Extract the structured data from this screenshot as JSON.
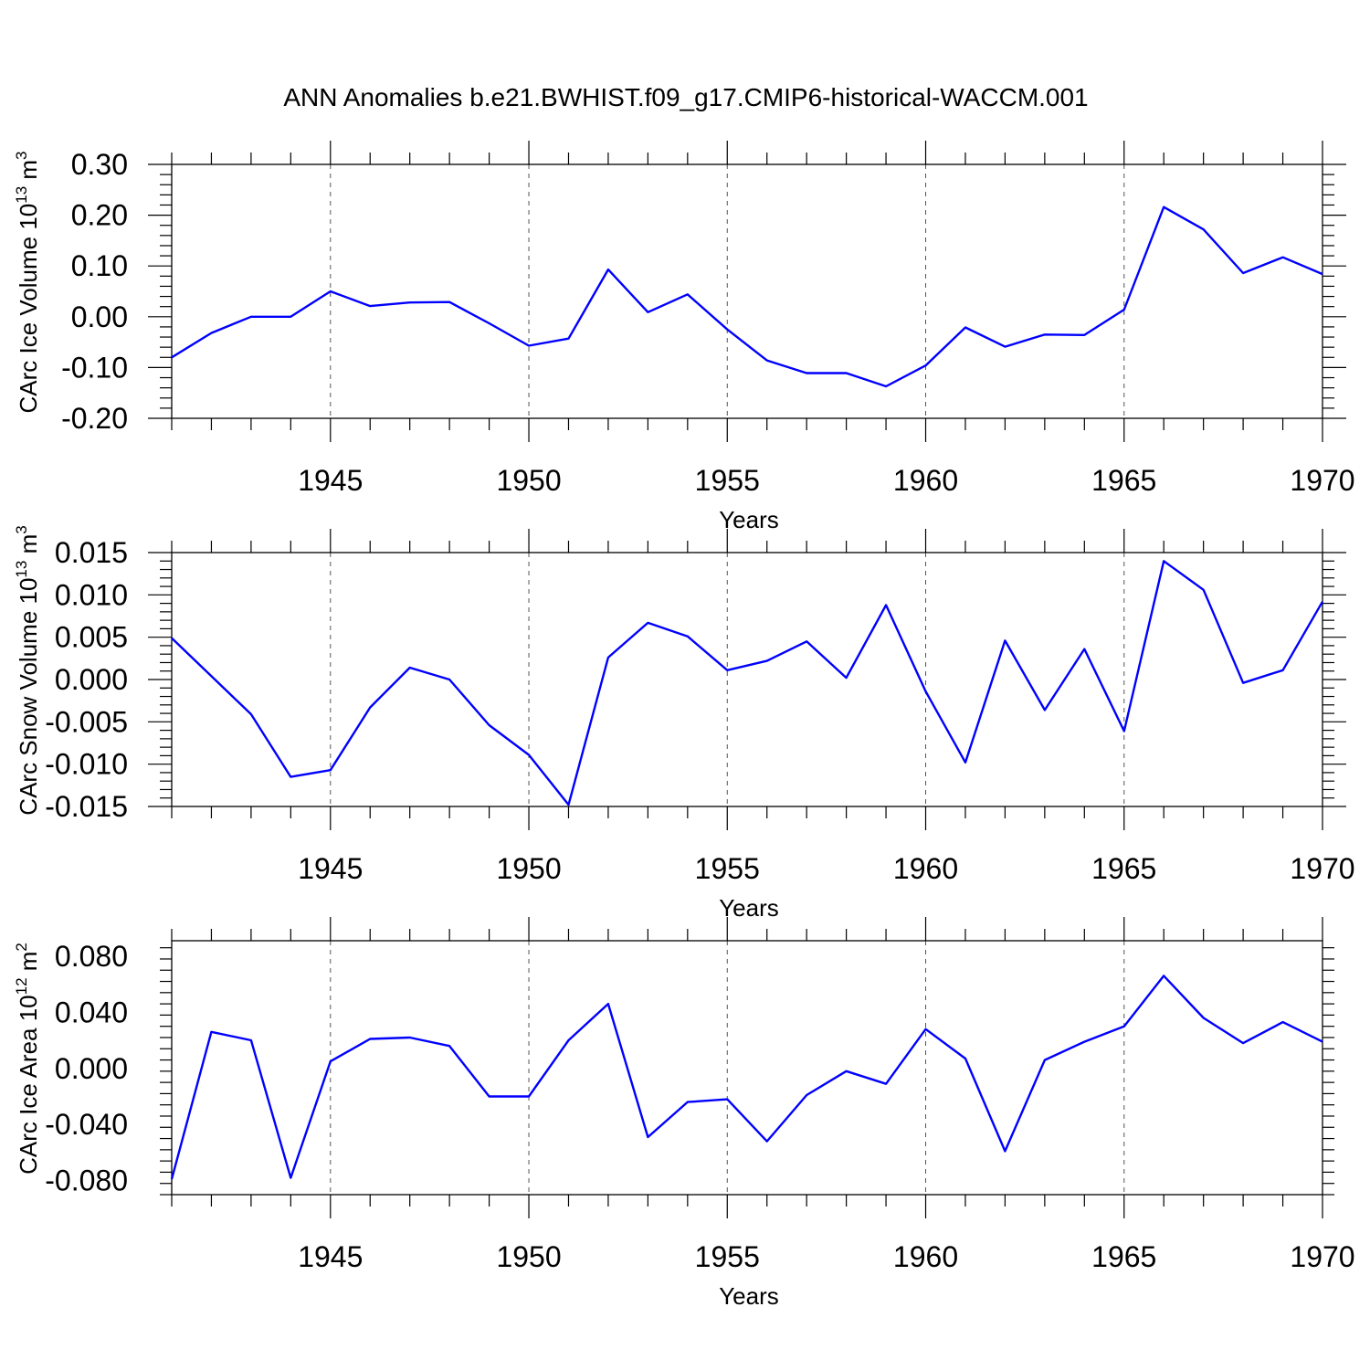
{
  "title": "ANN Anomalies b.e21.BWHIST.f09_g17.CMIP6-historical-WACCM.001",
  "colors": {
    "line": "#0000ff",
    "axis": "#000000"
  },
  "chart_data": [
    {
      "type": "line",
      "ylabel": "CArc Ice Volume 10",
      "ylabel_exp": "13",
      "ylabel_unit": "m",
      "ylabel_unit_exp": "3",
      "xlabel": "Years",
      "xlim": [
        1941,
        1970
      ],
      "ylim": [
        -0.2,
        0.3
      ],
      "yticks": [
        -0.2,
        -0.1,
        0.0,
        0.1,
        0.2,
        0.3
      ],
      "ytick_labels": [
        "-0.20",
        "-0.10",
        "0.00",
        "0.10",
        "0.20",
        "0.30"
      ],
      "xticks": [
        1945,
        1950,
        1955,
        1960,
        1965,
        1970
      ],
      "xtick_labels": [
        "1945",
        "1950",
        "1955",
        "1960",
        "1965",
        "1970"
      ],
      "grid": "dashed vertical lines at major x ticks",
      "x": [
        1941,
        1942,
        1943,
        1944,
        1945,
        1946,
        1947,
        1948,
        1949,
        1950,
        1951,
        1952,
        1953,
        1954,
        1955,
        1956,
        1957,
        1958,
        1959,
        1960,
        1961,
        1962,
        1963,
        1964,
        1965,
        1966,
        1967,
        1968,
        1969,
        1970
      ],
      "values": [
        -0.08,
        -0.032,
        0.0,
        0.0,
        0.05,
        0.021,
        0.028,
        0.029,
        -0.013,
        -0.057,
        -0.043,
        0.093,
        0.009,
        0.044,
        -0.025,
        -0.086,
        -0.111,
        -0.111,
        -0.137,
        -0.096,
        -0.021,
        -0.059,
        -0.035,
        -0.036,
        0.014,
        0.216,
        0.172,
        0.086,
        0.117,
        0.084
      ]
    },
    {
      "type": "line",
      "ylabel": "CArc Snow Volume 10",
      "ylabel_exp": "13",
      "ylabel_unit": "m",
      "ylabel_unit_exp": "3",
      "xlabel": "Years",
      "xlim": [
        1941,
        1970
      ],
      "ylim": [
        -0.015,
        0.015
      ],
      "yticks": [
        -0.015,
        -0.01,
        -0.005,
        0.0,
        0.005,
        0.01,
        0.015
      ],
      "ytick_labels": [
        "-0.015",
        "-0.010",
        "-0.005",
        "0.000",
        "0.005",
        "0.010",
        "0.015"
      ],
      "xticks": [
        1945,
        1950,
        1955,
        1960,
        1965,
        1970
      ],
      "xtick_labels": [
        "1945",
        "1950",
        "1955",
        "1960",
        "1965",
        "1970"
      ],
      "grid": "dashed vertical lines at major x ticks",
      "x": [
        1941,
        1942,
        1943,
        1944,
        1945,
        1946,
        1947,
        1948,
        1949,
        1950,
        1951,
        1952,
        1953,
        1954,
        1955,
        1956,
        1957,
        1958,
        1959,
        1960,
        1961,
        1962,
        1963,
        1964,
        1965,
        1966,
        1967,
        1968,
        1969,
        1970
      ],
      "values": [
        0.0049,
        0.0004,
        -0.0041,
        -0.0115,
        -0.0107,
        -0.0033,
        0.0014,
        0.0,
        -0.0054,
        -0.0089,
        -0.0148,
        0.0026,
        0.0067,
        0.0051,
        0.0011,
        0.0022,
        0.0045,
        0.0002,
        0.0088,
        -0.0014,
        -0.0098,
        0.0046,
        -0.0036,
        0.0036,
        -0.0061,
        0.014,
        0.0106,
        -0.0004,
        0.0011,
        0.0092
      ]
    },
    {
      "type": "line",
      "ylabel": "CArc Ice Area 10",
      "ylabel_exp": "12",
      "ylabel_unit": "m",
      "ylabel_unit_exp": "2",
      "xlabel": "Years",
      "xlim": [
        1941,
        1970
      ],
      "ylim": [
        -0.09,
        0.091
      ],
      "yticks": [
        -0.08,
        -0.04,
        0.0,
        0.04,
        0.08
      ],
      "ytick_labels": [
        "-0.080",
        "-0.040",
        "0.000",
        "0.040",
        "0.080"
      ],
      "xticks": [
        1945,
        1950,
        1955,
        1960,
        1965,
        1970
      ],
      "xtick_labels": [
        "1945",
        "1950",
        "1955",
        "1960",
        "1965",
        "1970"
      ],
      "grid": "dashed vertical lines at major x ticks",
      "x": [
        1941,
        1942,
        1943,
        1944,
        1945,
        1946,
        1947,
        1948,
        1949,
        1950,
        1951,
        1952,
        1953,
        1954,
        1955,
        1956,
        1957,
        1958,
        1959,
        1960,
        1961,
        1962,
        1963,
        1964,
        1965,
        1966,
        1967,
        1968,
        1969,
        1970
      ],
      "values": [
        -0.079,
        0.026,
        0.02,
        -0.078,
        0.005,
        0.021,
        0.022,
        0.016,
        -0.02,
        -0.02,
        0.02,
        0.046,
        -0.049,
        -0.024,
        -0.022,
        -0.052,
        -0.019,
        -0.002,
        -0.011,
        0.028,
        0.007,
        -0.059,
        0.006,
        0.019,
        0.03,
        0.066,
        0.036,
        0.018,
        0.033,
        0.019
      ]
    }
  ]
}
